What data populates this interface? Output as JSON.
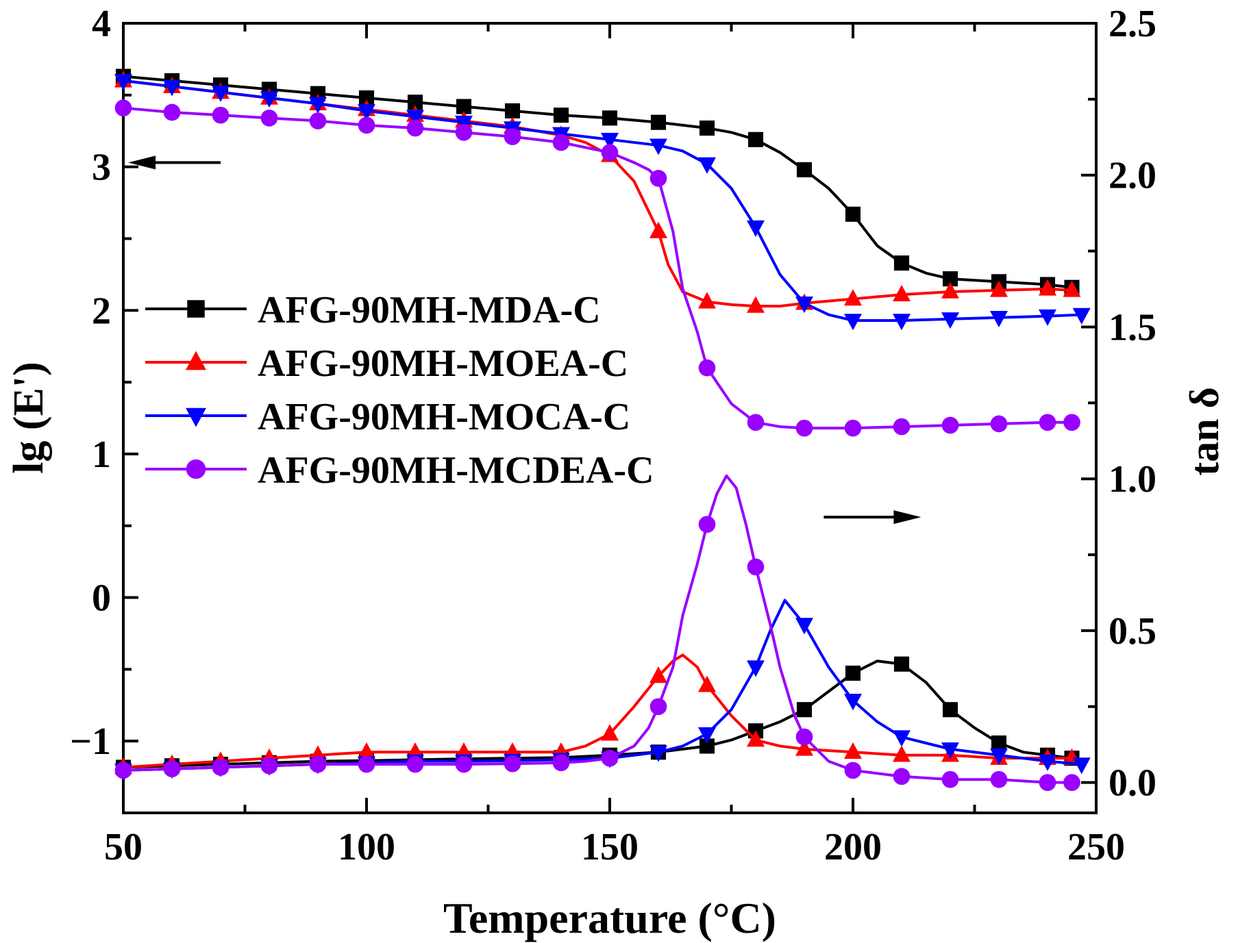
{
  "chart_data": {
    "type": "line",
    "xlabel": "Temperature (°C)",
    "ylabel_left": "lg (E')",
    "ylabel_right": "tan δ",
    "xlim": [
      50,
      250
    ],
    "ylim_left": [
      -1.5,
      4
    ],
    "ylim_right": [
      -0.1,
      2.5
    ],
    "x_ticks": [
      "50",
      "100",
      "150",
      "200",
      "250"
    ],
    "y_left_ticks": [
      "4",
      "3",
      "2",
      "1",
      "0",
      "−1"
    ],
    "y_right_ticks": [
      "2.5",
      "2.0",
      "1.5",
      "1.0",
      "0.5",
      "0.0"
    ],
    "legend": {
      "placement": "center-left",
      "entries": [
        {
          "name": "AFG-90MH-MDA-C",
          "color": "#000000",
          "marker": "square"
        },
        {
          "name": "AFG-90MH-MOEA-C",
          "color": "#ff0000",
          "marker": "triangle-up"
        },
        {
          "name": "AFG-90MH-MOCA-C",
          "color": "#0000ff",
          "marker": "triangle-down"
        },
        {
          "name": "AFG-90MH-MCDEA-C",
          "color": "#9900ff",
          "marker": "circle"
        }
      ]
    },
    "annotations": [
      {
        "text": "arrow pointing left to lg (E') axis",
        "direction": "left",
        "from": [
          70,
          3.03
        ],
        "to": [
          51,
          3.03
        ]
      },
      {
        "text": "arrow pointing right to tan δ axis",
        "direction": "right",
        "from": [
          194,
          0.56
        ],
        "to": [
          214,
          0.56
        ]
      }
    ],
    "series": [
      {
        "name": "AFG-90MH-MDA-C",
        "axis": "left",
        "color": "#000000",
        "marker": "square",
        "x": [
          50,
          60,
          70,
          80,
          90,
          100,
          110,
          120,
          130,
          140,
          150,
          160,
          170,
          175,
          180,
          185,
          190,
          195,
          200,
          205,
          210,
          215,
          220,
          230,
          240,
          245
        ],
        "y": [
          3.63,
          3.6,
          3.57,
          3.54,
          3.51,
          3.48,
          3.45,
          3.42,
          3.39,
          3.36,
          3.34,
          3.31,
          3.27,
          3.24,
          3.19,
          3.1,
          2.98,
          2.85,
          2.67,
          2.45,
          2.33,
          2.26,
          2.22,
          2.2,
          2.18,
          2.16
        ]
      },
      {
        "name": "AFG-90MH-MOEA-C",
        "axis": "left",
        "color": "#ff0000",
        "marker": "triangle-up",
        "x": [
          50,
          60,
          70,
          80,
          90,
          100,
          110,
          120,
          130,
          140,
          145,
          150,
          155,
          160,
          162,
          165,
          170,
          175,
          180,
          185,
          190,
          200,
          210,
          220,
          230,
          240,
          245
        ],
        "y": [
          3.6,
          3.56,
          3.52,
          3.48,
          3.44,
          3.4,
          3.36,
          3.32,
          3.28,
          3.22,
          3.17,
          3.08,
          2.9,
          2.55,
          2.32,
          2.13,
          2.06,
          2.04,
          2.03,
          2.03,
          2.05,
          2.08,
          2.11,
          2.13,
          2.14,
          2.15,
          2.14
        ]
      },
      {
        "name": "AFG-90MH-MOCA-C",
        "axis": "left",
        "color": "#0000ff",
        "marker": "triangle-down",
        "x": [
          50,
          60,
          70,
          80,
          90,
          100,
          110,
          120,
          130,
          140,
          150,
          160,
          165,
          170,
          175,
          180,
          185,
          190,
          195,
          200,
          210,
          220,
          230,
          240,
          247
        ],
        "y": [
          3.6,
          3.56,
          3.52,
          3.48,
          3.44,
          3.39,
          3.35,
          3.31,
          3.27,
          3.23,
          3.19,
          3.15,
          3.11,
          3.02,
          2.85,
          2.58,
          2.25,
          2.05,
          1.97,
          1.93,
          1.93,
          1.94,
          1.95,
          1.96,
          1.97
        ]
      },
      {
        "name": "AFG-90MH-MCDEA-C",
        "axis": "left",
        "color": "#9900ff",
        "marker": "circle",
        "x": [
          50,
          60,
          70,
          80,
          90,
          100,
          110,
          120,
          130,
          140,
          150,
          155,
          158,
          160,
          163,
          165,
          168,
          170,
          175,
          180,
          185,
          190,
          200,
          210,
          220,
          230,
          240,
          245
        ],
        "y": [
          3.41,
          3.38,
          3.36,
          3.34,
          3.32,
          3.29,
          3.27,
          3.24,
          3.21,
          3.17,
          3.1,
          3.03,
          2.98,
          2.92,
          2.55,
          2.15,
          1.85,
          1.6,
          1.35,
          1.22,
          1.19,
          1.18,
          1.18,
          1.19,
          1.2,
          1.21,
          1.22,
          1.22
        ]
      },
      {
        "name": "AFG-90MH-MDA-C",
        "axis": "right",
        "color": "#000000",
        "marker": "square",
        "x": [
          50,
          60,
          70,
          80,
          90,
          100,
          110,
          120,
          130,
          140,
          150,
          160,
          165,
          170,
          175,
          180,
          185,
          190,
          195,
          200,
          205,
          210,
          215,
          220,
          225,
          230,
          235,
          240,
          245
        ],
        "y": [
          0.05,
          0.055,
          0.06,
          0.065,
          0.07,
          0.072,
          0.075,
          0.078,
          0.08,
          0.082,
          0.09,
          0.1,
          0.11,
          0.12,
          0.14,
          0.17,
          0.2,
          0.24,
          0.3,
          0.36,
          0.4,
          0.39,
          0.33,
          0.24,
          0.18,
          0.13,
          0.1,
          0.09,
          0.08
        ]
      },
      {
        "name": "AFG-90MH-MOEA-C",
        "axis": "right",
        "color": "#ff0000",
        "marker": "triangle-up",
        "x": [
          50,
          60,
          70,
          80,
          90,
          100,
          110,
          120,
          130,
          140,
          145,
          150,
          155,
          160,
          163,
          165,
          168,
          170,
          175,
          180,
          185,
          190,
          200,
          210,
          220,
          230,
          240,
          245
        ],
        "y": [
          0.05,
          0.06,
          0.07,
          0.08,
          0.09,
          0.1,
          0.1,
          0.1,
          0.1,
          0.1,
          0.12,
          0.16,
          0.25,
          0.35,
          0.4,
          0.42,
          0.38,
          0.32,
          0.22,
          0.14,
          0.12,
          0.11,
          0.1,
          0.09,
          0.09,
          0.08,
          0.08,
          0.08
        ]
      },
      {
        "name": "AFG-90MH-MOCA-C",
        "axis": "right",
        "color": "#0000ff",
        "marker": "triangle-down",
        "x": [
          50,
          60,
          70,
          80,
          90,
          100,
          110,
          120,
          130,
          140,
          150,
          155,
          160,
          165,
          170,
          175,
          180,
          183,
          186,
          190,
          195,
          200,
          205,
          210,
          220,
          230,
          240,
          247
        ],
        "y": [
          0.04,
          0.045,
          0.05,
          0.055,
          0.06,
          0.065,
          0.07,
          0.07,
          0.072,
          0.075,
          0.08,
          0.09,
          0.1,
          0.12,
          0.16,
          0.24,
          0.38,
          0.5,
          0.6,
          0.52,
          0.38,
          0.27,
          0.2,
          0.15,
          0.11,
          0.09,
          0.07,
          0.06
        ]
      },
      {
        "name": "AFG-90MH-MCDEA-C",
        "axis": "right",
        "color": "#9900ff",
        "marker": "circle",
        "x": [
          50,
          60,
          70,
          80,
          90,
          100,
          110,
          120,
          130,
          140,
          145,
          150,
          155,
          158,
          160,
          163,
          165,
          168,
          170,
          172,
          174,
          176,
          178,
          180,
          183,
          185,
          188,
          190,
          195,
          200,
          210,
          220,
          230,
          240,
          245
        ],
        "y": [
          0.04,
          0.045,
          0.05,
          0.055,
          0.06,
          0.06,
          0.06,
          0.06,
          0.062,
          0.065,
          0.07,
          0.08,
          0.12,
          0.18,
          0.25,
          0.38,
          0.55,
          0.72,
          0.85,
          0.95,
          1.01,
          0.97,
          0.85,
          0.71,
          0.52,
          0.38,
          0.22,
          0.15,
          0.07,
          0.04,
          0.02,
          0.01,
          0.01,
          0.0,
          0.0
        ]
      }
    ]
  }
}
